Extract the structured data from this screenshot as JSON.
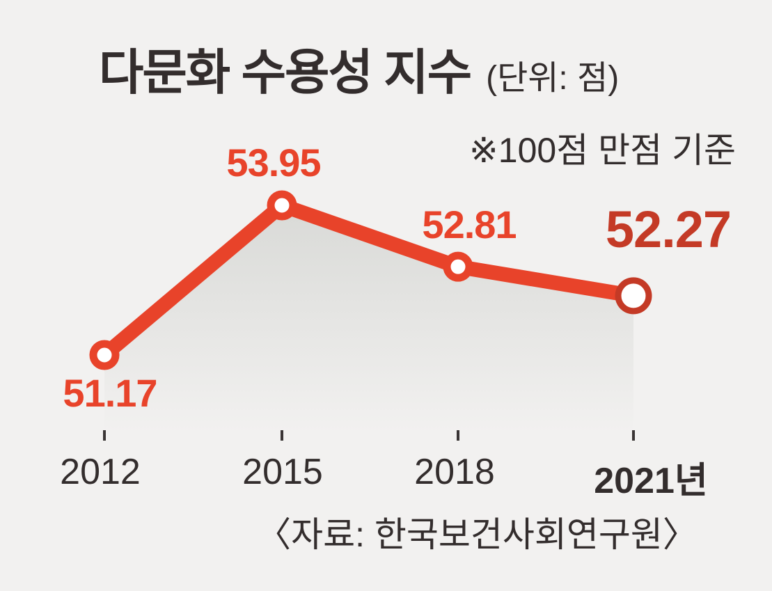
{
  "chart_data": {
    "type": "line",
    "title": "다문화 수용성 지수",
    "unit_label": "(단위: 점)",
    "note": "※100점 만점 기준",
    "source": "〈자료: 한국보건사회연구원〉",
    "categories": [
      "2012",
      "2015",
      "2018",
      "2021년"
    ],
    "values": [
      51.17,
      53.95,
      52.81,
      52.27
    ],
    "value_labels": [
      "51.17",
      "53.95",
      "52.81",
      "52.27"
    ],
    "emphasized_index": 3,
    "ylabel": "",
    "xlabel": "",
    "ylim": [
      50.5,
      54.5
    ],
    "grid": false,
    "legend": false,
    "area_fill": true,
    "colors": {
      "line": "#e8432a",
      "value_label": "#e8432a",
      "emphasis": "#c43a26",
      "area_top": "#d7d8d5",
      "background": "#f2f1f0",
      "text": "#332d2d",
      "marker_fill": "#ffffff",
      "tick": "#3a3535"
    }
  }
}
